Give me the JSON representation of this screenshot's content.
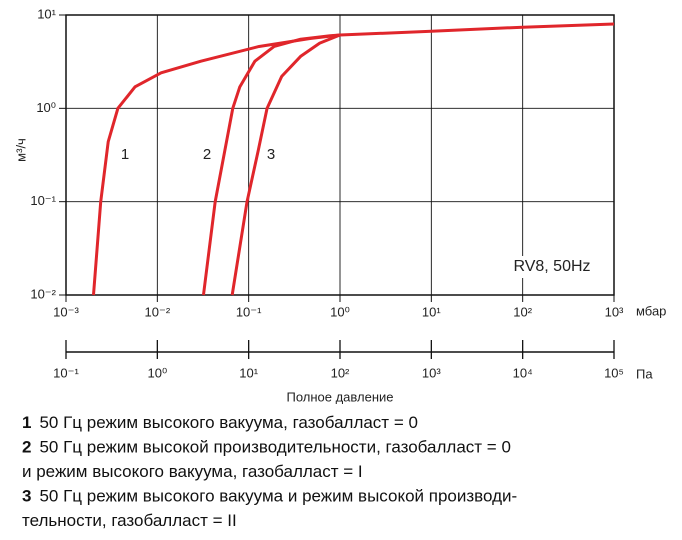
{
  "chart_data": {
    "type": "line",
    "xlabel": "Полное давление",
    "xunit": "мбар",
    "ylabel": "м³/ч",
    "annotation": "RV8, 50Hz",
    "xscale": "log",
    "yscale": "log",
    "grid": true,
    "xlim": [
      0.001,
      1000
    ],
    "xticks": [
      {
        "value": 0.001,
        "label": "10⁻³"
      },
      {
        "value": 0.01,
        "label": "10⁻²"
      },
      {
        "value": 0.1,
        "label": "10⁻¹"
      },
      {
        "value": 1,
        "label": "10⁰"
      },
      {
        "value": 10,
        "label": "10¹"
      },
      {
        "value": 100,
        "label": "10²"
      },
      {
        "value": 1000,
        "label": "10³"
      }
    ],
    "ylim": [
      0.01,
      10
    ],
    "yticks": [
      {
        "value": 0.01,
        "label": "10⁻²"
      },
      {
        "value": 0.1,
        "label": "10⁻¹"
      },
      {
        "value": 1,
        "label": "10⁰"
      },
      {
        "value": 10,
        "label": "10¹"
      }
    ],
    "x2unit": "Па",
    "x2lim": [
      0.1,
      100000
    ],
    "x2ticks": [
      {
        "value": 0.1,
        "label": "10⁻¹"
      },
      {
        "value": 1,
        "label": "10⁰"
      },
      {
        "value": 10,
        "label": "10¹"
      },
      {
        "value": 100,
        "label": "10²"
      },
      {
        "value": 1000,
        "label": "10³"
      },
      {
        "value": 10000,
        "label": "10⁴"
      },
      {
        "value": 100000,
        "label": "10⁵"
      }
    ],
    "series": [
      {
        "name": "1",
        "color": "#e0262b",
        "x": [
          0.002,
          0.0024,
          0.0029,
          0.0037,
          0.0057,
          0.011,
          0.03,
          0.13,
          0.47,
          1,
          10,
          100,
          1000
        ],
        "values": [
          0.01,
          0.1,
          0.44,
          1.0,
          1.7,
          2.4,
          3.2,
          4.6,
          5.6,
          6.1,
          6.7,
          7.4,
          8
        ]
      },
      {
        "name": "2",
        "color": "#e0262b",
        "x": [
          0.032,
          0.043,
          0.067,
          0.08,
          0.117,
          0.19,
          0.37,
          0.78,
          1
        ],
        "values": [
          0.01,
          0.1,
          1.0,
          1.7,
          3.2,
          4.6,
          5.5,
          6.0,
          6.1
        ]
      },
      {
        "name": "3",
        "color": "#e0262b",
        "x": [
          0.066,
          0.096,
          0.127,
          0.159,
          0.23,
          0.37,
          0.6,
          1
        ],
        "values": [
          0.01,
          0.1,
          0.35,
          1.0,
          2.2,
          3.6,
          5.0,
          6.1
        ]
      }
    ],
    "notes": [
      {
        "number": "1",
        "lines": [
          "50 Гц режим высокого вакуума, газобалласт = 0"
        ]
      },
      {
        "number": "2",
        "lines": [
          "50 Гц режим высокой производительности, газобалласт = 0",
          "и режим высокого вакуума, газобалласт = I"
        ]
      },
      {
        "number": "3",
        "lines": [
          "50 Гц режим высокого вакуума и режим высокой производи-",
          "тельности, газобалласт = II"
        ]
      }
    ]
  }
}
